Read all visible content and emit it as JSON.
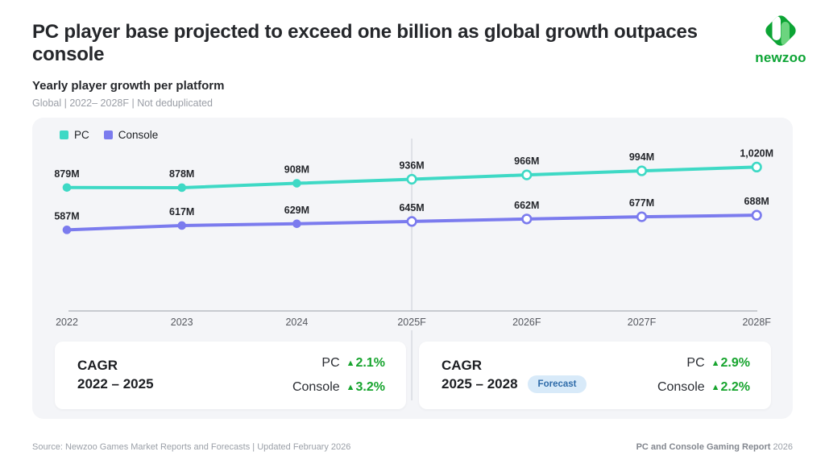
{
  "page": {
    "title": "PC player base projected to exceed one billion as global growth outpaces console",
    "chart_heading": "Yearly player growth per platform",
    "chart_subheading": "Global | 2022– 2028F | Not deduplicated"
  },
  "logo": {
    "wordmark": "newzoo",
    "green": "#0ca434",
    "light_green": "#6cd47f"
  },
  "chart_data": {
    "type": "line",
    "title": "Yearly player growth per platform",
    "unit": "M players",
    "categories": [
      "2022",
      "2023",
      "2024",
      "2025F",
      "2026F",
      "2027F",
      "2028F"
    ],
    "series": [
      {
        "name": "PC",
        "color": "#3ed9c5",
        "values": [
          879,
          878,
          908,
          936,
          966,
          994,
          1020
        ],
        "labels": [
          "879M",
          "878M",
          "908M",
          "936M",
          "966M",
          "994M",
          "1,020M"
        ]
      },
      {
        "name": "Console",
        "color": "#7b7bee",
        "values": [
          587,
          617,
          629,
          645,
          662,
          677,
          688
        ],
        "labels": [
          "587M",
          "617M",
          "629M",
          "645M",
          "662M",
          "677M",
          "688M"
        ]
      }
    ],
    "forecast_start_index": 3,
    "legend_position": "top-left",
    "grid": false,
    "axis_color": "#b8bbc2",
    "divider_color": "#d4d7de",
    "tick_color": "#55585f",
    "label_color": "#24262b"
  },
  "cagr_cards": [
    {
      "label": "CAGR",
      "range": "2022 – 2025",
      "badge": "",
      "rows": [
        {
          "name": "PC",
          "value": "2.1%"
        },
        {
          "name": "Console",
          "value": "3.2%"
        }
      ]
    },
    {
      "label": "CAGR",
      "range": "2025 – 2028",
      "badge": "Forecast",
      "rows": [
        {
          "name": "PC",
          "value": "2.9%"
        },
        {
          "name": "Console",
          "value": "2.2%"
        }
      ]
    }
  ],
  "icons": {
    "up_triangle": "▲"
  },
  "footer": {
    "source": "Source: Newzoo Games Market Reports and Forecasts | Updated February 2026",
    "report_name": "PC and Console Gaming Report",
    "report_year": "2026"
  }
}
